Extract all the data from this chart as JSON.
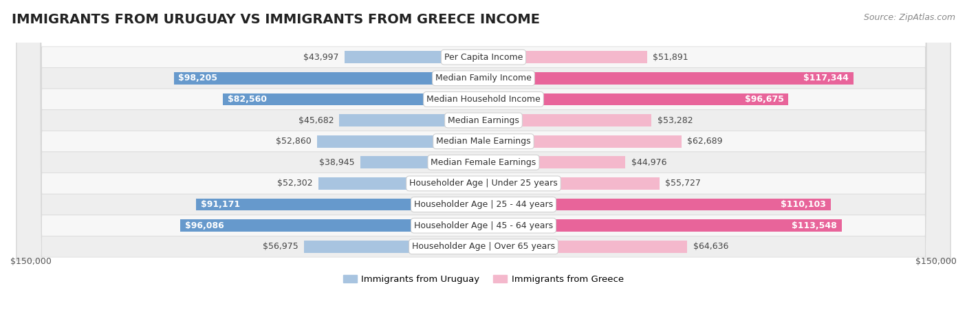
{
  "title": "IMMIGRANTS FROM URUGUAY VS IMMIGRANTS FROM GREECE INCOME",
  "source": "Source: ZipAtlas.com",
  "categories": [
    "Per Capita Income",
    "Median Family Income",
    "Median Household Income",
    "Median Earnings",
    "Median Male Earnings",
    "Median Female Earnings",
    "Householder Age | Under 25 years",
    "Householder Age | 25 - 44 years",
    "Householder Age | 45 - 64 years",
    "Householder Age | Over 65 years"
  ],
  "uruguay_values": [
    43997,
    98205,
    82560,
    45682,
    52860,
    38945,
    52302,
    91171,
    96086,
    56975
  ],
  "greece_values": [
    51891,
    117344,
    96675,
    53282,
    62689,
    44976,
    55727,
    110103,
    113548,
    64636
  ],
  "uruguay_labels": [
    "$43,997",
    "$98,205",
    "$82,560",
    "$45,682",
    "$52,860",
    "$38,945",
    "$52,302",
    "$91,171",
    "$96,086",
    "$56,975"
  ],
  "greece_labels": [
    "$51,891",
    "$117,344",
    "$96,675",
    "$53,282",
    "$62,689",
    "$44,976",
    "$55,727",
    "$110,103",
    "$113,548",
    "$64,636"
  ],
  "uruguay_highlighted": [
    false,
    true,
    true,
    false,
    false,
    false,
    false,
    true,
    true,
    false
  ],
  "greece_highlighted": [
    false,
    true,
    true,
    false,
    false,
    false,
    false,
    true,
    true,
    false
  ],
  "uruguay_color_light": "#a8c4e0",
  "uruguay_color_dark": "#6699cc",
  "greece_color_light": "#f4b8cc",
  "greece_color_dark": "#e8649a",
  "max_value": 150000,
  "bar_height": 0.58,
  "row_bg_even": "#f7f7f7",
  "row_bg_odd": "#eeeeee",
  "legend_uruguay": "Immigrants from Uruguay",
  "legend_greece": "Immigrants from Greece",
  "title_fontsize": 14,
  "source_fontsize": 9,
  "label_fontsize": 9,
  "category_fontsize": 9
}
